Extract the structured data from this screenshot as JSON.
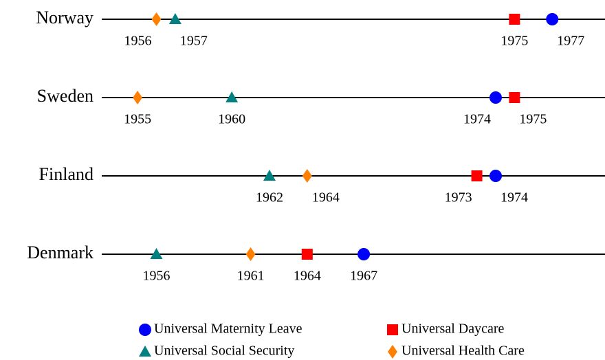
{
  "chart_data": {
    "type": "timeline",
    "categories": [
      "Norway",
      "Sweden",
      "Finland",
      "Denmark"
    ],
    "xlim": [
      1953.1,
      1979.8
    ],
    "series": [
      {
        "name": "Universal Maternity Leave",
        "color": "#0000ff",
        "marker": "circle",
        "values": [
          1977,
          1974,
          1974,
          1967
        ]
      },
      {
        "name": "Universal Daycare",
        "color": "#ff0000",
        "marker": "square",
        "values": [
          1975,
          1975,
          1973,
          1964
        ]
      },
      {
        "name": "Universal Social Security",
        "color": "#008080",
        "marker": "triangle",
        "values": [
          1957,
          1960,
          1962,
          1956
        ]
      },
      {
        "name": "Universal Health Care",
        "color": "#ff8000",
        "marker": "diamond",
        "values": [
          1956,
          1955,
          1964,
          1961
        ]
      }
    ]
  }
}
